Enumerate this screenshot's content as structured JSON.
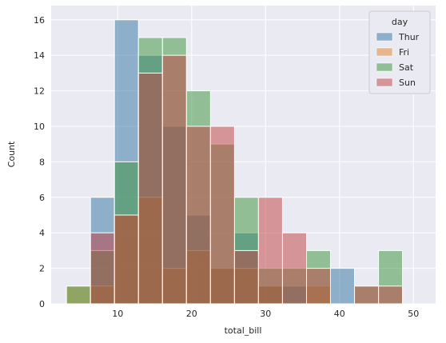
{
  "chart_data": {
    "type": "histogram",
    "title": "",
    "xlabel": "total_bill",
    "ylabel": "Count",
    "xlim": [
      1.0,
      53.0
    ],
    "ylim": [
      0,
      16.8
    ],
    "xticks": [
      10,
      20,
      30,
      40,
      50
    ],
    "yticks": [
      0,
      2,
      4,
      6,
      8,
      10,
      12,
      14,
      16
    ],
    "grid": true,
    "legend": {
      "title": "day",
      "placement": "top-right"
    },
    "bins": [
      3.07,
      6.32,
      9.56,
      12.81,
      16.06,
      19.3,
      22.55,
      25.8,
      29.04,
      32.29,
      35.54,
      38.78,
      42.03,
      45.28,
      48.52,
      51.77
    ],
    "series": [
      {
        "name": "Thur",
        "color": "#3274a1",
        "counts": [
          0,
          6,
          16,
          14,
          10,
          5,
          2,
          4,
          1,
          1,
          0,
          2,
          0,
          0,
          0
        ]
      },
      {
        "name": "Fri",
        "color": "#e1812c",
        "counts": [
          1,
          1,
          5,
          6,
          2,
          3,
          2,
          2,
          1,
          0,
          1,
          0,
          0,
          0,
          0
        ]
      },
      {
        "name": "Sat",
        "color": "#3a923a",
        "counts": [
          1,
          3,
          8,
          15,
          15,
          12,
          9,
          6,
          2,
          2,
          3,
          0,
          1,
          3,
          0
        ]
      },
      {
        "name": "Sun",
        "color": "#c03d3e",
        "counts": [
          0,
          4,
          5,
          13,
          14,
          10,
          10,
          3,
          6,
          4,
          2,
          0,
          1,
          1,
          0
        ]
      }
    ]
  }
}
